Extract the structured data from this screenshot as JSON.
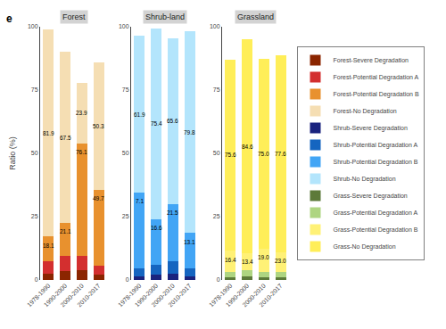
{
  "panel_label": "e",
  "chart_data": [
    {
      "type": "bar",
      "stacked": true,
      "title": "Forest",
      "ylabel": "Ratio (%)",
      "categories": [
        "1978-1990",
        "1990-2000",
        "2000-2010",
        "2010-2017"
      ],
      "series": [
        {
          "name": "Forest-Severe Degradation",
          "color": "#8B2500",
          "values": [
            2.5,
            3.5,
            4.0,
            2.0
          ]
        },
        {
          "name": "Forest-Potential Degradation A",
          "color": "#D32F2F",
          "values": [
            5.0,
            6.0,
            5.5,
            3.5
          ]
        },
        {
          "name": "Forest-Potential Degradation B",
          "color": "#E8912E",
          "values": [
            9.6,
            13.0,
            44.5,
            30.0
          ]
        },
        {
          "name": "Forest-No Degradation",
          "color": "#F5DEB3",
          "values": [
            81.9,
            67.5,
            23.9,
            50.3
          ],
          "data_labels": true,
          "value_labels": [
            "81.9",
            "67.5",
            "23.9",
            "50.3"
          ]
        }
      ],
      "bottom_labels": [
        18.1,
        21.1,
        76.1,
        49.7
      ],
      "bottom_value_labels": [
        "18.1",
        "21.1",
        "76.1",
        "49.7"
      ],
      "ylim": [
        0,
        100
      ],
      "yticks": [
        0,
        25,
        50,
        75,
        100
      ],
      "grid": false,
      "legend": "right"
    },
    {
      "type": "bar",
      "stacked": true,
      "title": "Shrub-land",
      "categories": [
        "1978-1990",
        "1990-2000",
        "2000-2010",
        "2010-2017"
      ],
      "series": [
        {
          "name": "Shrub-Severe Degradation",
          "color": "#1A237E",
          "values": [
            1.5,
            2.0,
            2.5,
            1.5
          ]
        },
        {
          "name": "Shrub-Potential Degradation A",
          "color": "#1565C0",
          "values": [
            3.0,
            4.0,
            5.0,
            3.0
          ]
        },
        {
          "name": "Shrub-Potential Degradation B",
          "color": "#42A5F5",
          "values": [
            30.0,
            18.0,
            22.5,
            14.0
          ]
        },
        {
          "name": "Shrub-No Degradation",
          "color": "#B3E5FC",
          "values": [
            61.9,
            75.4,
            65.6,
            79.8
          ],
          "data_labels": true,
          "value_labels": [
            "61.9",
            "75.4",
            "65.6",
            "79.8"
          ]
        }
      ],
      "bottom_labels": [
        7.1,
        16.6,
        21.5,
        13.1
      ],
      "bottom_value_labels": [
        "7.1",
        "16.6",
        "21.5",
        "13.1"
      ],
      "ylim": [
        0,
        100
      ],
      "yticks": [
        0,
        25,
        50,
        75,
        100
      ],
      "grid": false,
      "legend": "right"
    },
    {
      "type": "bar",
      "stacked": true,
      "title": "Grassland",
      "categories": [
        "1978-1990",
        "1990-2000",
        "2000-2010",
        "2010-2017"
      ],
      "series": [
        {
          "name": "Grass-Severe Degradation",
          "color": "#5D7A3A",
          "values": [
            1.0,
            1.5,
            1.0,
            1.0
          ]
        },
        {
          "name": "Grass-Potential Degradation A",
          "color": "#AED581",
          "values": [
            2.0,
            2.5,
            2.0,
            2.0
          ]
        },
        {
          "name": "Grass-Potential Degradation B",
          "color": "#FFF176",
          "values": [
            8.5,
            6.5,
            9.5,
            8.0
          ]
        },
        {
          "name": "Grass-No Degradation",
          "color": "#FFEE58",
          "values": [
            75.6,
            84.6,
            75.0,
            77.6
          ],
          "data_labels": true,
          "value_labels": [
            "75.6",
            "84.6",
            "75.0",
            "77.6"
          ]
        }
      ],
      "bottom_labels": [
        16.4,
        13.4,
        19.0,
        23.0
      ],
      "bottom_value_labels": [
        "16.4",
        "13.4",
        "19.0",
        "23.0"
      ],
      "ylim": [
        0,
        100
      ],
      "yticks": [
        0,
        25,
        50,
        75,
        100
      ],
      "grid": false,
      "legend": "right"
    }
  ]
}
